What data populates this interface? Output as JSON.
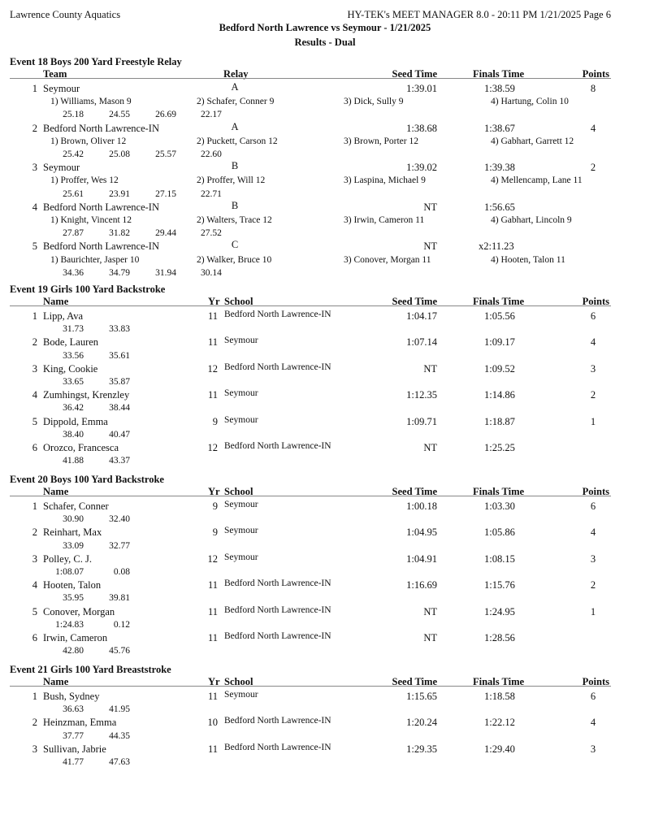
{
  "header": {
    "org": "Lawrence County Aquatics",
    "software": "HY-TEK's MEET MANAGER 8.0 - 20:11 PM  1/21/2025  Page 6",
    "meet_title": "Bedford North Lawrence vs Seymour - 1/21/2025",
    "subtitle": "Results - Dual"
  },
  "events": [
    {
      "title": "Event 18  Boys 200 Yard Freestyle Relay",
      "type": "relay",
      "columns": {
        "team": "Team",
        "relay": "Relay",
        "seed": "Seed Time",
        "finals": "Finals Time",
        "points": "Points"
      },
      "results": [
        {
          "place": "1",
          "team": "Seymour",
          "relay": "A",
          "seed": "1:39.01",
          "finals": "1:38.59",
          "points": "8",
          "swimmers": [
            "1) Williams, Mason 9",
            "2) Schafer, Conner 9",
            "3) Dick, Sully 9",
            "4) Hartung, Colin 10"
          ],
          "splits": [
            "25.18",
            "24.55",
            "26.69",
            "22.17"
          ]
        },
        {
          "place": "2",
          "team": "Bedford North Lawrence-IN",
          "relay": "A",
          "seed": "1:38.68",
          "finals": "1:38.67",
          "points": "4",
          "swimmers": [
            "1) Brown, Oliver 12",
            "2) Puckett, Carson 12",
            "3) Brown, Porter 12",
            "4) Gabhart, Garrett 12"
          ],
          "splits": [
            "25.42",
            "25.08",
            "25.57",
            "22.60"
          ]
        },
        {
          "place": "3",
          "team": "Seymour",
          "relay": "B",
          "seed": "1:39.02",
          "finals": "1:39.38",
          "points": "2",
          "swimmers": [
            "1) Proffer, Wes 12",
            "2) Proffer, Will 12",
            "3) Laspina, Michael 9",
            "4) Mellencamp, Lane 11"
          ],
          "splits": [
            "25.61",
            "23.91",
            "27.15",
            "22.71"
          ]
        },
        {
          "place": "4",
          "team": "Bedford North Lawrence-IN",
          "relay": "B",
          "seed": "NT",
          "finals": "1:56.65",
          "points": "",
          "swimmers": [
            "1) Knight, Vincent 12",
            "2) Walters, Trace 12",
            "3) Irwin, Cameron 11",
            "4) Gabhart, Lincoln 9"
          ],
          "splits": [
            "27.87",
            "31.82",
            "29.44",
            "27.52"
          ]
        },
        {
          "place": "5",
          "team": "Bedford North Lawrence-IN",
          "relay": "C",
          "seed": "NT",
          "finals": "x2:11.23",
          "points": "",
          "swimmers": [
            "1) Baurichter, Jasper 10",
            "2) Walker, Bruce 10",
            "3) Conover, Morgan 11",
            "4) Hooten, Talon 11"
          ],
          "splits": [
            "34.36",
            "34.79",
            "31.94",
            "30.14"
          ]
        }
      ]
    },
    {
      "title": "Event 19  Girls 100 Yard Backstroke",
      "type": "individual",
      "columns": {
        "name": "Name",
        "yr": "Yr",
        "school": "School",
        "seed": "Seed Time",
        "finals": "Finals Time",
        "points": "Points"
      },
      "results": [
        {
          "place": "1",
          "name": "Lipp, Ava",
          "yr": "11",
          "school": "Bedford North Lawrence-IN",
          "seed": "1:04.17",
          "finals": "1:05.56",
          "points": "6",
          "splits": [
            "31.73",
            "33.83"
          ]
        },
        {
          "place": "2",
          "name": "Bode, Lauren",
          "yr": "11",
          "school": "Seymour",
          "seed": "1:07.14",
          "finals": "1:09.17",
          "points": "4",
          "splits": [
            "33.56",
            "35.61"
          ]
        },
        {
          "place": "3",
          "name": "King, Cookie",
          "yr": "12",
          "school": "Bedford North Lawrence-IN",
          "seed": "NT",
          "finals": "1:09.52",
          "points": "3",
          "splits": [
            "33.65",
            "35.87"
          ]
        },
        {
          "place": "4",
          "name": "Zumhingst, Krenzley",
          "yr": "11",
          "school": "Seymour",
          "seed": "1:12.35",
          "finals": "1:14.86",
          "points": "2",
          "splits": [
            "36.42",
            "38.44"
          ]
        },
        {
          "place": "5",
          "name": "Dippold, Emma",
          "yr": "9",
          "school": "Seymour",
          "seed": "1:09.71",
          "finals": "1:18.87",
          "points": "1",
          "splits": [
            "38.40",
            "40.47"
          ]
        },
        {
          "place": "6",
          "name": "Orozco, Francesca",
          "yr": "12",
          "school": "Bedford North Lawrence-IN",
          "seed": "NT",
          "finals": "1:25.25",
          "points": "",
          "splits": [
            "41.88",
            "43.37"
          ]
        }
      ]
    },
    {
      "title": "Event 20  Boys 100 Yard Backstroke",
      "type": "individual",
      "columns": {
        "name": "Name",
        "yr": "Yr",
        "school": "School",
        "seed": "Seed Time",
        "finals": "Finals Time",
        "points": "Points"
      },
      "results": [
        {
          "place": "1",
          "name": "Schafer, Conner",
          "yr": "9",
          "school": "Seymour",
          "seed": "1:00.18",
          "finals": "1:03.30",
          "points": "6",
          "splits": [
            "30.90",
            "32.40"
          ]
        },
        {
          "place": "2",
          "name": "Reinhart, Max",
          "yr": "9",
          "school": "Seymour",
          "seed": "1:04.95",
          "finals": "1:05.86",
          "points": "4",
          "splits": [
            "33.09",
            "32.77"
          ]
        },
        {
          "place": "3",
          "name": "Polley, C. J.",
          "yr": "12",
          "school": "Seymour",
          "seed": "1:04.91",
          "finals": "1:08.15",
          "points": "3",
          "splits": [
            "1:08.07",
            "0.08"
          ]
        },
        {
          "place": "4",
          "name": "Hooten, Talon",
          "yr": "11",
          "school": "Bedford North Lawrence-IN",
          "seed": "1:16.69",
          "finals": "1:15.76",
          "points": "2",
          "splits": [
            "35.95",
            "39.81"
          ]
        },
        {
          "place": "5",
          "name": "Conover, Morgan",
          "yr": "11",
          "school": "Bedford North Lawrence-IN",
          "seed": "NT",
          "finals": "1:24.95",
          "points": "1",
          "splits": [
            "1:24.83",
            "0.12"
          ]
        },
        {
          "place": "6",
          "name": "Irwin, Cameron",
          "yr": "11",
          "school": "Bedford North Lawrence-IN",
          "seed": "NT",
          "finals": "1:28.56",
          "points": "",
          "splits": [
            "42.80",
            "45.76"
          ]
        }
      ]
    },
    {
      "title": "Event 21  Girls 100 Yard Breaststroke",
      "type": "individual",
      "columns": {
        "name": "Name",
        "yr": "Yr",
        "school": "School",
        "seed": "Seed Time",
        "finals": "Finals Time",
        "points": "Points"
      },
      "results": [
        {
          "place": "1",
          "name": "Bush, Sydney",
          "yr": "11",
          "school": "Seymour",
          "seed": "1:15.65",
          "finals": "1:18.58",
          "points": "6",
          "splits": [
            "36.63",
            "41.95"
          ]
        },
        {
          "place": "2",
          "name": "Heinzman, Emma",
          "yr": "10",
          "school": "Bedford North Lawrence-IN",
          "seed": "1:20.24",
          "finals": "1:22.12",
          "points": "4",
          "splits": [
            "37.77",
            "44.35"
          ]
        },
        {
          "place": "3",
          "name": "Sullivan, Jabrie",
          "yr": "11",
          "school": "Bedford North Lawrence-IN",
          "seed": "1:29.35",
          "finals": "1:29.40",
          "points": "3",
          "splits": [
            "41.77",
            "47.63"
          ]
        }
      ]
    }
  ]
}
